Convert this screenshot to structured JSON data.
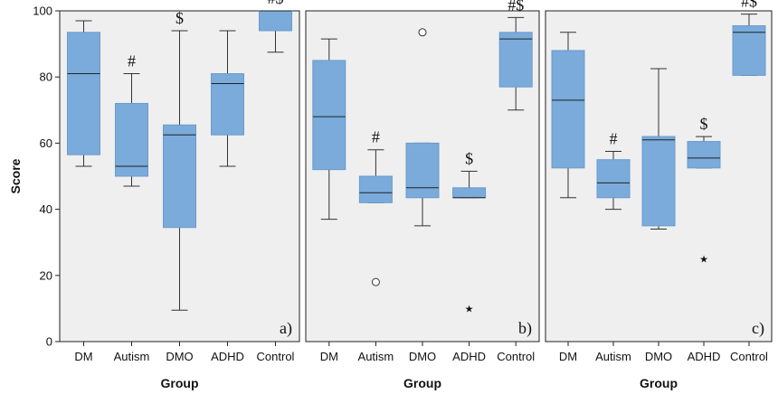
{
  "chart_data": {
    "type": "box",
    "ylabel": "Score",
    "xlabel": "Group",
    "ylim": [
      0,
      100
    ],
    "yticks": [
      0,
      20,
      40,
      60,
      80,
      100
    ],
    "categories": [
      "DM",
      "Autism",
      "DMO",
      "ADHD",
      "Control"
    ],
    "colors": {
      "box": "#7aabdb",
      "background": "#efefef"
    },
    "panels": [
      {
        "label": "a)",
        "boxes": [
          {
            "group": "DM",
            "min": 53,
            "q1": 56.5,
            "median": 81,
            "q3": 93.5,
            "max": 97,
            "annotation": "",
            "outliers": [],
            "extremes": []
          },
          {
            "group": "Autism",
            "min": 47,
            "q1": 50,
            "median": 53,
            "q3": 72,
            "max": 81,
            "annotation": "#",
            "outliers": [],
            "extremes": []
          },
          {
            "group": "DMO",
            "min": 9.5,
            "q1": 34.5,
            "median": 62.5,
            "q3": 65.5,
            "max": 94,
            "annotation": "$",
            "outliers": [],
            "extremes": []
          },
          {
            "group": "ADHD",
            "min": 53,
            "q1": 62.5,
            "median": 78,
            "q3": 81,
            "max": 94,
            "annotation": "",
            "outliers": [],
            "extremes": []
          },
          {
            "group": "Control",
            "min": 87.5,
            "q1": 94,
            "median": 100,
            "q3": 100,
            "max": 100,
            "annotation": "#$",
            "outliers": [],
            "extremes": []
          }
        ]
      },
      {
        "label": "b)",
        "boxes": [
          {
            "group": "DM",
            "min": 37,
            "q1": 52,
            "median": 68,
            "q3": 85,
            "max": 91.5,
            "annotation": "",
            "outliers": [],
            "extremes": []
          },
          {
            "group": "Autism",
            "min": 42,
            "q1": 42,
            "median": 45,
            "q3": 50,
            "max": 58,
            "annotation": "#",
            "outliers": [
              18
            ],
            "extremes": []
          },
          {
            "group": "DMO",
            "min": 35,
            "q1": 43.5,
            "median": 46.5,
            "q3": 60,
            "max": 60,
            "annotation": "",
            "outliers": [
              93.5
            ],
            "extremes": []
          },
          {
            "group": "ADHD",
            "min": 43.5,
            "q1": 43.5,
            "median": 43.5,
            "q3": 46.5,
            "max": 51.5,
            "annotation": "$",
            "outliers": [],
            "extremes": [
              10
            ]
          },
          {
            "group": "Control",
            "min": 70,
            "q1": 77,
            "median": 91.5,
            "q3": 93.5,
            "max": 98,
            "annotation": "#$",
            "outliers": [],
            "extremes": []
          }
        ]
      },
      {
        "label": "c)",
        "boxes": [
          {
            "group": "DM",
            "min": 43.5,
            "q1": 52.5,
            "median": 73,
            "q3": 88,
            "max": 93.5,
            "annotation": "",
            "outliers": [],
            "extremes": []
          },
          {
            "group": "Autism",
            "min": 40,
            "q1": 43.5,
            "median": 48,
            "q3": 55,
            "max": 57.5,
            "annotation": "#",
            "outliers": [],
            "extremes": []
          },
          {
            "group": "DMO",
            "min": 34,
            "q1": 35,
            "median": 61,
            "q3": 62,
            "max": 82.5,
            "annotation": "",
            "outliers": [],
            "extremes": []
          },
          {
            "group": "ADHD",
            "min": 52.5,
            "q1": 52.5,
            "median": 55.5,
            "q3": 60.5,
            "max": 62,
            "annotation": "$",
            "outliers": [],
            "extremes": [
              25
            ]
          },
          {
            "group": "Control",
            "min": 80.5,
            "q1": 80.5,
            "median": 93.5,
            "q3": 95.5,
            "max": 99,
            "annotation": "#$",
            "outliers": [],
            "extremes": []
          }
        ]
      }
    ]
  }
}
